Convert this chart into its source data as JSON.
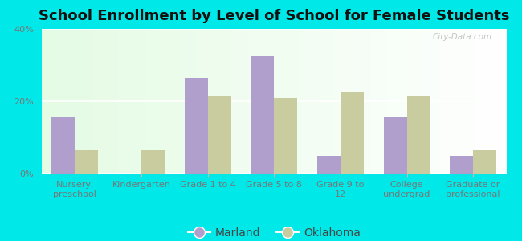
{
  "title": "School Enrollment by Level of School for Female Students",
  "categories": [
    "Nursery,\npreschool",
    "Kindergarten",
    "Grade 1 to 4",
    "Grade 5 to 8",
    "Grade 9 to\n12",
    "College\nundergrad",
    "Graduate or\nprofessional"
  ],
  "marland_values": [
    15.5,
    0,
    26.5,
    32.5,
    5.0,
    15.5,
    5.0
  ],
  "oklahoma_values": [
    6.5,
    6.5,
    21.5,
    21.0,
    22.5,
    21.5,
    6.5
  ],
  "marland_color": "#b09fcc",
  "oklahoma_color": "#c8cc9f",
  "background_outer": "#00e8e8",
  "ylim": [
    0,
    40
  ],
  "yticks": [
    0,
    20,
    40
  ],
  "ytick_labels": [
    "0%",
    "20%",
    "40%"
  ],
  "legend_labels": [
    "Marland",
    "Oklahoma"
  ],
  "bar_width": 0.35,
  "watermark": "City-Data.com",
  "title_fontsize": 13,
  "tick_fontsize": 8,
  "legend_fontsize": 10
}
